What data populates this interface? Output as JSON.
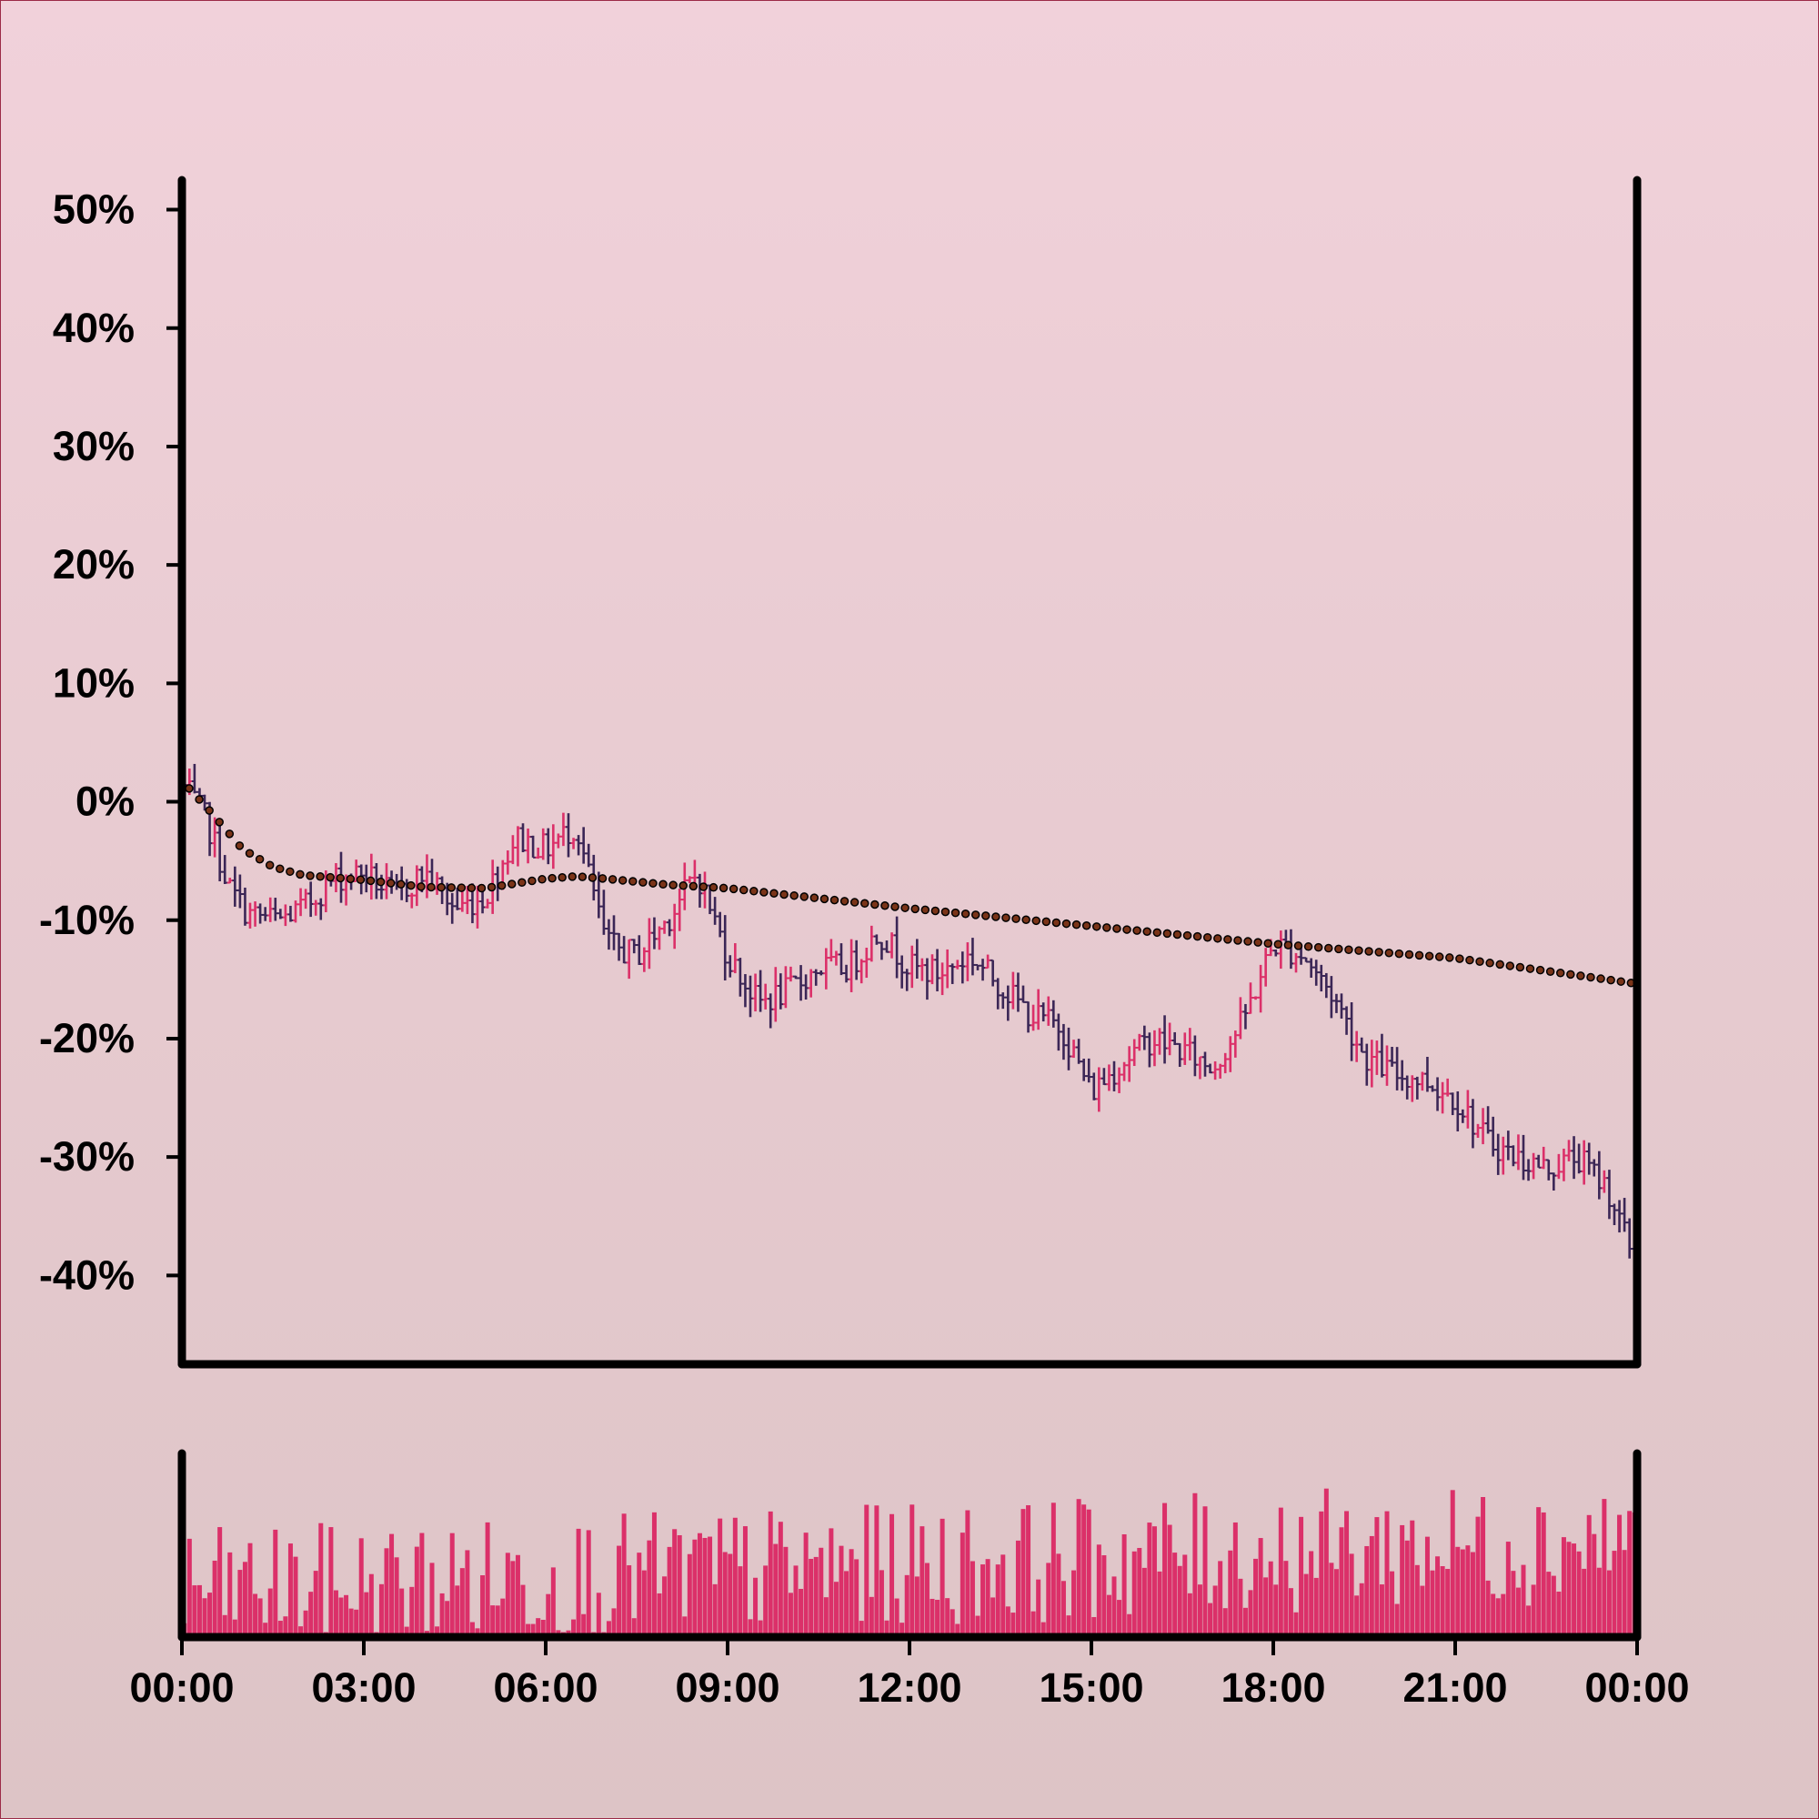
{
  "colors": {
    "up": "#db3069",
    "down": "#3b2656",
    "volume": "#db3069",
    "trend_fill": "#7a3418",
    "trend_stroke": "#000000",
    "axis": "#000000",
    "background_top": "#f1d1da",
    "background_bottom": "#ddc4c6"
  },
  "chart_data": {
    "type": "ohlc",
    "unit": "%",
    "interval_minutes": 5,
    "bar_count": 288,
    "y_ticks": [
      "50%",
      "40%",
      "30%",
      "20%",
      "10%",
      "0%",
      "-10%",
      "-20%",
      "-30%",
      "-40%"
    ],
    "y_tick_values": [
      50,
      40,
      30,
      20,
      10,
      0,
      -10,
      -20,
      -30,
      -40
    ],
    "ylim": [
      -47.5,
      52.5
    ],
    "x_ticks": [
      "00:00",
      "03:00",
      "06:00",
      "09:00",
      "12:00",
      "15:00",
      "18:00",
      "21:00",
      "00:00"
    ],
    "x_tick_hours": [
      0,
      3,
      6,
      9,
      12,
      15,
      18,
      21,
      24
    ],
    "xlim_hours": [
      0,
      24
    ],
    "grid": false,
    "legend": "none",
    "close_path": [
      {
        "h": 0.0,
        "v": 1.5
      },
      {
        "h": 0.4,
        "v": -1.5
      },
      {
        "h": 0.8,
        "v": -7.5
      },
      {
        "h": 1.1,
        "v": -9.5
      },
      {
        "h": 1.6,
        "v": -10.0
      },
      {
        "h": 2.0,
        "v": -9.0
      },
      {
        "h": 2.5,
        "v": -6.5
      },
      {
        "h": 3.0,
        "v": -6.0
      },
      {
        "h": 3.5,
        "v": -8.0
      },
      {
        "h": 4.0,
        "v": -6.0
      },
      {
        "h": 4.5,
        "v": -9.0
      },
      {
        "h": 5.0,
        "v": -8.0
      },
      {
        "h": 5.5,
        "v": -3.0
      },
      {
        "h": 6.0,
        "v": -4.0
      },
      {
        "h": 6.5,
        "v": -2.0
      },
      {
        "h": 7.0,
        "v": -12.0
      },
      {
        "h": 7.5,
        "v": -13.0
      },
      {
        "h": 8.0,
        "v": -10.0
      },
      {
        "h": 8.5,
        "v": -6.0
      },
      {
        "h": 9.0,
        "v": -13.0
      },
      {
        "h": 9.5,
        "v": -17.0
      },
      {
        "h": 10.0,
        "v": -16.0
      },
      {
        "h": 10.5,
        "v": -14.0
      },
      {
        "h": 11.0,
        "v": -14.0
      },
      {
        "h": 11.5,
        "v": -11.0
      },
      {
        "h": 12.0,
        "v": -14.0
      },
      {
        "h": 12.5,
        "v": -14.5
      },
      {
        "h": 13.0,
        "v": -13.0
      },
      {
        "h": 13.5,
        "v": -15.5
      },
      {
        "h": 14.0,
        "v": -18.0
      },
      {
        "h": 14.5,
        "v": -19.0
      },
      {
        "h": 15.0,
        "v": -24.5
      },
      {
        "h": 15.5,
        "v": -22.0
      },
      {
        "h": 16.0,
        "v": -20.0
      },
      {
        "h": 16.5,
        "v": -21.0
      },
      {
        "h": 17.0,
        "v": -22.5
      },
      {
        "h": 17.5,
        "v": -18.5
      },
      {
        "h": 18.0,
        "v": -12.0
      },
      {
        "h": 18.5,
        "v": -13.0
      },
      {
        "h": 19.0,
        "v": -16.5
      },
      {
        "h": 19.5,
        "v": -21.5
      },
      {
        "h": 20.0,
        "v": -23.0
      },
      {
        "h": 20.5,
        "v": -23.5
      },
      {
        "h": 21.0,
        "v": -25.0
      },
      {
        "h": 21.5,
        "v": -28.5
      },
      {
        "h": 22.0,
        "v": -30.0
      },
      {
        "h": 22.5,
        "v": -31.0
      },
      {
        "h": 23.0,
        "v": -30.0
      },
      {
        "h": 23.5,
        "v": -32.5
      },
      {
        "h": 23.9,
        "v": -38.0
      }
    ],
    "trend_path": [
      {
        "h": 0.0,
        "v": 1.8
      },
      {
        "h": 0.5,
        "v": -1.0
      },
      {
        "h": 1.0,
        "v": -4.0
      },
      {
        "h": 1.5,
        "v": -5.5
      },
      {
        "h": 2.0,
        "v": -6.2
      },
      {
        "h": 3.0,
        "v": -6.6
      },
      {
        "h": 4.0,
        "v": -7.2
      },
      {
        "h": 5.0,
        "v": -7.3
      },
      {
        "h": 6.0,
        "v": -6.5
      },
      {
        "h": 6.5,
        "v": -6.3
      },
      {
        "h": 7.0,
        "v": -6.5
      },
      {
        "h": 8.0,
        "v": -7.0
      },
      {
        "h": 9.0,
        "v": -7.3
      },
      {
        "h": 12.0,
        "v": -9.0
      },
      {
        "h": 15.0,
        "v": -10.5
      },
      {
        "h": 18.0,
        "v": -12.0
      },
      {
        "h": 21.0,
        "v": -13.2
      },
      {
        "h": 23.9,
        "v": -15.3
      }
    ]
  }
}
